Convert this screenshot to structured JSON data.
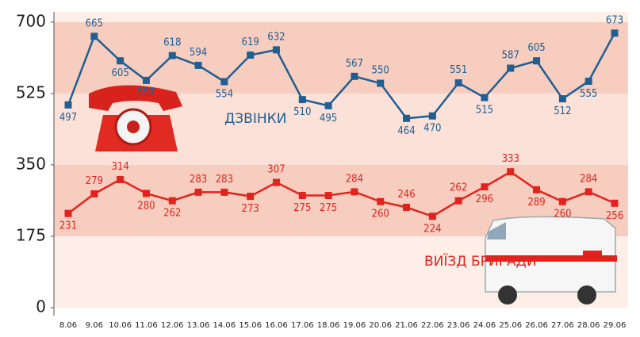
{
  "chart_data": {
    "type": "line",
    "categories": [
      "8.06",
      "9.06",
      "10.06",
      "11.06",
      "12.06",
      "13.06",
      "14.06",
      "15.06",
      "16.06",
      "17.06",
      "18.06",
      "19.06",
      "20.06",
      "21.06",
      "22.06",
      "23.06",
      "24.06",
      "25.06",
      "26.06",
      "27.06",
      "28.06",
      "29.06"
    ],
    "series": [
      {
        "name": "ДЗВІНКИ",
        "color": "#1f5f93",
        "values": [
          497,
          665,
          605,
          557,
          618,
          594,
          554,
          619,
          632,
          510,
          495,
          567,
          550,
          464,
          470,
          551,
          515,
          587,
          605,
          512,
          555,
          673
        ]
      },
      {
        "name": "ВИЇЗД БРИГАДИ",
        "color": "#e2231d",
        "values": [
          231,
          279,
          314,
          280,
          262,
          283,
          283,
          273,
          307,
          275,
          275,
          284,
          260,
          246,
          224,
          262,
          296,
          333,
          289,
          260,
          284,
          256
        ]
      }
    ],
    "ylim": [
      0,
      725
    ],
    "yticks": [
      0,
      175,
      350,
      525,
      700
    ]
  }
}
